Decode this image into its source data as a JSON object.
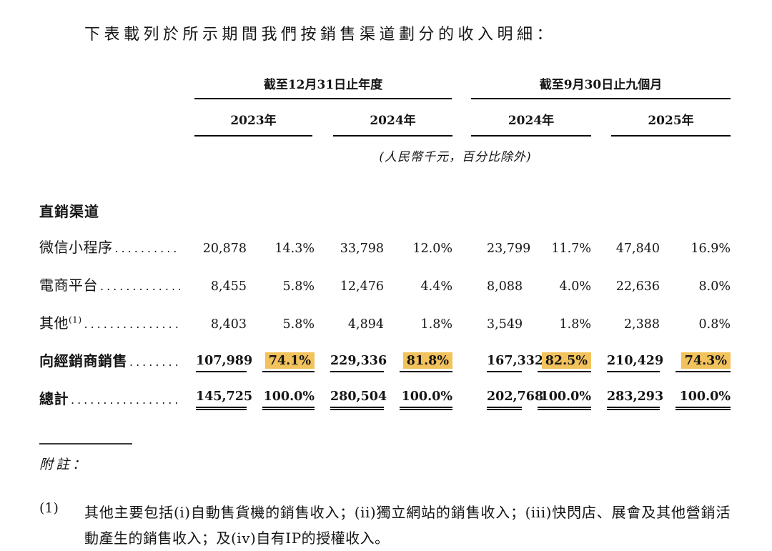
{
  "colors": {
    "highlight": "#F2C25C",
    "text": "#151515"
  },
  "intro": "下表載列於所示期間我們按銷售渠道劃分的收入明細：",
  "table": {
    "col_groups": [
      {
        "label": "截至12月31日止年度",
        "years": [
          "2023年",
          "2024年"
        ]
      },
      {
        "label": "截至9月30日止九個月",
        "years": [
          "2024年",
          "2025年"
        ]
      }
    ],
    "unit_note": "(人民幣千元，百分比除外)",
    "section_header": "直銷渠道",
    "rows": [
      {
        "label": "微信小程序",
        "sup": "",
        "bold": false,
        "underline": "none",
        "values": [
          "20,878",
          "14.3%",
          "33,798",
          "12.0%",
          "23,799",
          "11.7%",
          "47,840",
          "16.9%"
        ],
        "highlight": []
      },
      {
        "label": "電商平台",
        "sup": "",
        "bold": false,
        "underline": "none",
        "values": [
          "8,455",
          "5.8%",
          "12,476",
          "4.4%",
          "8,088",
          "4.0%",
          "22,636",
          "8.0%"
        ],
        "highlight": []
      },
      {
        "label": "其他",
        "sup": "(1)",
        "bold": false,
        "underline": "none",
        "values": [
          "8,403",
          "5.8%",
          "4,894",
          "1.8%",
          "3,549",
          "1.8%",
          "2,388",
          "0.8%"
        ],
        "highlight": []
      },
      {
        "label": "向經銷商銷售",
        "sup": "",
        "bold": true,
        "underline": "single",
        "values": [
          "107,989",
          "74.1%",
          "229,336",
          "81.8%",
          "167,332",
          "82.5%",
          "210,429",
          "74.3%"
        ],
        "highlight": [
          1,
          3,
          5,
          7
        ]
      },
      {
        "label": "總計",
        "sup": "",
        "bold": true,
        "underline": "double",
        "values": [
          "145,725",
          "100.0%",
          "280,504",
          "100.0%",
          "202,768",
          "100.0%",
          "283,293",
          "100.0%"
        ],
        "highlight": []
      }
    ]
  },
  "notes": {
    "heading": "附註：",
    "items": [
      {
        "marker": "(1)",
        "text": "其他主要包括(i)自動售貨機的銷售收入；(ii)獨立網站的銷售收入；(iii)快閃店、展會及其他營銷活動產生的銷售收入；及(iv)自有IP的授權收入。"
      }
    ]
  }
}
